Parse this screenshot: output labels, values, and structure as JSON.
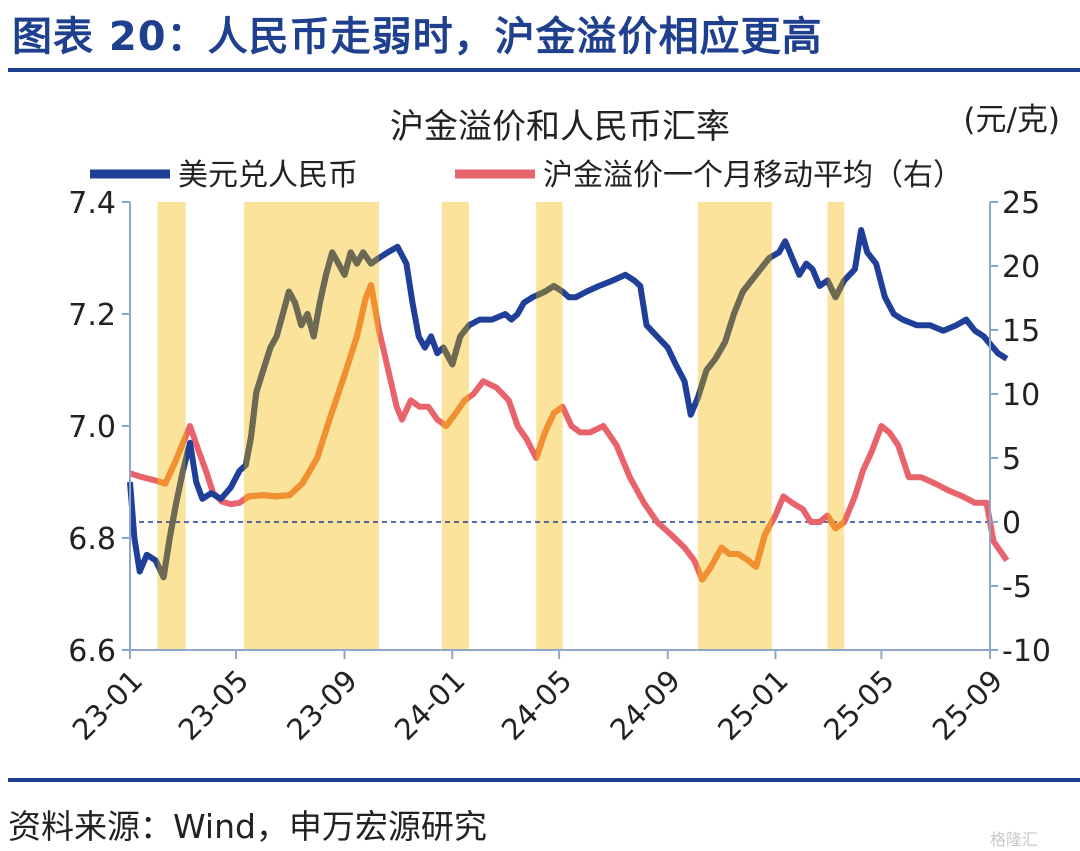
{
  "figure": {
    "title": "图表 20：人民币走弱时，沪金溢价相应更高",
    "source": "资料来源：Wind，申万宏源研究",
    "watermark": "格隆汇"
  },
  "chart_data": {
    "type": "line",
    "title": "沪金溢价和人民币汇率",
    "right_unit": "(元/克)",
    "x_tick_labels": [
      "23-01",
      "23-05",
      "23-09",
      "24-01",
      "24-05",
      "24-09",
      "25-01",
      "25-05",
      "25-09"
    ],
    "x_range": [
      "2023-01",
      "2025-09"
    ],
    "y_left": {
      "range": [
        6.6,
        7.4
      ],
      "ticks": [
        "6.6",
        "6.8",
        "7.0",
        "7.2",
        "7.4"
      ]
    },
    "y_right": {
      "range": [
        -10,
        25
      ],
      "ticks": [
        "-10",
        "-5",
        "0",
        "5",
        "10",
        "15",
        "20",
        "25"
      ]
    },
    "zero_reference_line": {
      "axis": "right",
      "value": 0
    },
    "shaded_periods": [
      [
        "2023-02-01",
        "2023-03-05"
      ],
      [
        "2023-05-10",
        "2023-10-10"
      ],
      [
        "2023-12-20",
        "2024-01-20"
      ],
      [
        "2024-04-05",
        "2024-05-05"
      ],
      [
        "2024-10-05",
        "2024-12-28"
      ],
      [
        "2025-03-01",
        "2025-03-20"
      ]
    ],
    "shade_color": "#fbe39c",
    "series": [
      {
        "name": "美元兑人民币",
        "axis": "left",
        "color": "#1f3f99",
        "points": [
          [
            "2023-01-01",
            6.9
          ],
          [
            "2023-01-06",
            6.8
          ],
          [
            "2023-01-12",
            6.74
          ],
          [
            "2023-01-20",
            6.77
          ],
          [
            "2023-01-30",
            6.76
          ],
          [
            "2023-02-08",
            6.73
          ],
          [
            "2023-02-15",
            6.8
          ],
          [
            "2023-02-22",
            6.86
          ],
          [
            "2023-03-02",
            6.92
          ],
          [
            "2023-03-10",
            6.97
          ],
          [
            "2023-03-17",
            6.9
          ],
          [
            "2023-03-24",
            6.87
          ],
          [
            "2023-04-03",
            6.88
          ],
          [
            "2023-04-14",
            6.87
          ],
          [
            "2023-04-25",
            6.89
          ],
          [
            "2023-05-05",
            6.92
          ],
          [
            "2023-05-12",
            6.93
          ],
          [
            "2023-05-18",
            6.98
          ],
          [
            "2023-05-24",
            7.06
          ],
          [
            "2023-06-01",
            7.1
          ],
          [
            "2023-06-09",
            7.14
          ],
          [
            "2023-06-16",
            7.16
          ],
          [
            "2023-06-23",
            7.2
          ],
          [
            "2023-06-30",
            7.24
          ],
          [
            "2023-07-07",
            7.22
          ],
          [
            "2023-07-14",
            7.18
          ],
          [
            "2023-07-21",
            7.2
          ],
          [
            "2023-07-28",
            7.16
          ],
          [
            "2023-08-04",
            7.22
          ],
          [
            "2023-08-11",
            7.27
          ],
          [
            "2023-08-18",
            7.31
          ],
          [
            "2023-08-25",
            7.29
          ],
          [
            "2023-09-01",
            7.27
          ],
          [
            "2023-09-08",
            7.31
          ],
          [
            "2023-09-15",
            7.29
          ],
          [
            "2023-09-22",
            7.31
          ],
          [
            "2023-10-01",
            7.29
          ],
          [
            "2023-10-10",
            7.3
          ],
          [
            "2023-10-20",
            7.31
          ],
          [
            "2023-10-31",
            7.32
          ],
          [
            "2023-11-10",
            7.29
          ],
          [
            "2023-11-17",
            7.22
          ],
          [
            "2023-11-24",
            7.16
          ],
          [
            "2023-12-01",
            7.14
          ],
          [
            "2023-12-08",
            7.16
          ],
          [
            "2023-12-15",
            7.13
          ],
          [
            "2023-12-22",
            7.14
          ],
          [
            "2024-01-01",
            7.11
          ],
          [
            "2024-01-10",
            7.16
          ],
          [
            "2024-01-20",
            7.18
          ],
          [
            "2024-02-01",
            7.19
          ],
          [
            "2024-02-15",
            7.19
          ],
          [
            "2024-03-01",
            7.2
          ],
          [
            "2024-03-08",
            7.19
          ],
          [
            "2024-03-15",
            7.2
          ],
          [
            "2024-03-22",
            7.22
          ],
          [
            "2024-04-01",
            7.23
          ],
          [
            "2024-04-15",
            7.24
          ],
          [
            "2024-04-25",
            7.25
          ],
          [
            "2024-05-05",
            7.24
          ],
          [
            "2024-05-12",
            7.23
          ],
          [
            "2024-05-20",
            7.23
          ],
          [
            "2024-06-01",
            7.24
          ],
          [
            "2024-06-15",
            7.25
          ],
          [
            "2024-07-01",
            7.26
          ],
          [
            "2024-07-15",
            7.27
          ],
          [
            "2024-07-25",
            7.26
          ],
          [
            "2024-08-01",
            7.25
          ],
          [
            "2024-08-08",
            7.18
          ],
          [
            "2024-08-20",
            7.16
          ],
          [
            "2024-09-01",
            7.14
          ],
          [
            "2024-09-10",
            7.11
          ],
          [
            "2024-09-20",
            7.08
          ],
          [
            "2024-09-27",
            7.02
          ],
          [
            "2024-10-05",
            7.05
          ],
          [
            "2024-10-15",
            7.1
          ],
          [
            "2024-10-25",
            7.12
          ],
          [
            "2024-11-05",
            7.15
          ],
          [
            "2024-11-15",
            7.2
          ],
          [
            "2024-11-25",
            7.24
          ],
          [
            "2024-12-05",
            7.26
          ],
          [
            "2024-12-15",
            7.28
          ],
          [
            "2024-12-25",
            7.3
          ],
          [
            "2025-01-05",
            7.31
          ],
          [
            "2025-01-12",
            7.33
          ],
          [
            "2025-01-20",
            7.3
          ],
          [
            "2025-01-28",
            7.27
          ],
          [
            "2025-02-05",
            7.29
          ],
          [
            "2025-02-12",
            7.28
          ],
          [
            "2025-02-20",
            7.25
          ],
          [
            "2025-03-01",
            7.26
          ],
          [
            "2025-03-10",
            7.23
          ],
          [
            "2025-03-20",
            7.26
          ],
          [
            "2025-04-01",
            7.28
          ],
          [
            "2025-04-08",
            7.35
          ],
          [
            "2025-04-15",
            7.31
          ],
          [
            "2025-04-25",
            7.29
          ],
          [
            "2025-05-05",
            7.23
          ],
          [
            "2025-05-15",
            7.2
          ],
          [
            "2025-05-25",
            7.19
          ],
          [
            "2025-06-10",
            7.18
          ],
          [
            "2025-06-25",
            7.18
          ],
          [
            "2025-07-10",
            7.17
          ],
          [
            "2025-07-25",
            7.18
          ],
          [
            "2025-08-05",
            7.19
          ],
          [
            "2025-08-15",
            7.17
          ],
          [
            "2025-08-25",
            7.16
          ],
          [
            "2025-09-10",
            7.13
          ],
          [
            "2025-09-20",
            7.12
          ]
        ]
      },
      {
        "name": "沪金溢价一个月移动平均（右）",
        "axis": "right",
        "color": "#e8636b",
        "highlight_color": "#f0902f",
        "points": [
          [
            "2023-01-01",
            3.8
          ],
          [
            "2023-01-15",
            3.5
          ],
          [
            "2023-02-01",
            3.2
          ],
          [
            "2023-02-10",
            3.0
          ],
          [
            "2023-02-20",
            4.5
          ],
          [
            "2023-03-01",
            6.0
          ],
          [
            "2023-03-10",
            7.5
          ],
          [
            "2023-03-20",
            5.5
          ],
          [
            "2023-03-28",
            4.0
          ],
          [
            "2023-04-05",
            2.3
          ],
          [
            "2023-04-15",
            1.6
          ],
          [
            "2023-04-25",
            1.4
          ],
          [
            "2023-05-05",
            1.5
          ],
          [
            "2023-05-15",
            2.0
          ],
          [
            "2023-06-01",
            2.1
          ],
          [
            "2023-06-15",
            2.0
          ],
          [
            "2023-07-01",
            2.1
          ],
          [
            "2023-07-15",
            3.0
          ],
          [
            "2023-08-01",
            5.0
          ],
          [
            "2023-08-15",
            8.0
          ],
          [
            "2023-09-01",
            11.5
          ],
          [
            "2023-09-15",
            14.5
          ],
          [
            "2023-09-25",
            17.5
          ],
          [
            "2023-10-01",
            18.5
          ],
          [
            "2023-10-10",
            15.0
          ],
          [
            "2023-10-20",
            12.0
          ],
          [
            "2023-10-30",
            9.0
          ],
          [
            "2023-11-05",
            8.0
          ],
          [
            "2023-11-15",
            9.5
          ],
          [
            "2023-11-25",
            9.0
          ],
          [
            "2023-12-05",
            9.0
          ],
          [
            "2023-12-15",
            8.0
          ],
          [
            "2023-12-25",
            7.5
          ],
          [
            "2024-01-05",
            8.5
          ],
          [
            "2024-01-15",
            9.5
          ],
          [
            "2024-01-25",
            10.0
          ],
          [
            "2024-02-05",
            11.0
          ],
          [
            "2024-02-20",
            10.5
          ],
          [
            "2024-03-05",
            9.5
          ],
          [
            "2024-03-15",
            7.5
          ],
          [
            "2024-03-25",
            6.5
          ],
          [
            "2024-04-05",
            5.0
          ],
          [
            "2024-04-15",
            7.0
          ],
          [
            "2024-04-25",
            8.5
          ],
          [
            "2024-05-05",
            9.0
          ],
          [
            "2024-05-15",
            7.5
          ],
          [
            "2024-05-25",
            7.0
          ],
          [
            "2024-06-05",
            7.0
          ],
          [
            "2024-06-20",
            7.5
          ],
          [
            "2024-07-05",
            6.0
          ],
          [
            "2024-07-20",
            3.5
          ],
          [
            "2024-08-05",
            1.5
          ],
          [
            "2024-08-20",
            0.0
          ],
          [
            "2024-09-05",
            -1.0
          ],
          [
            "2024-09-20",
            -2.0
          ],
          [
            "2024-10-01",
            -3.0
          ],
          [
            "2024-10-10",
            -4.5
          ],
          [
            "2024-10-20",
            -3.5
          ],
          [
            "2024-11-01",
            -2.0
          ],
          [
            "2024-11-10",
            -2.5
          ],
          [
            "2024-11-20",
            -2.5
          ],
          [
            "2024-12-01",
            -3.0
          ],
          [
            "2024-12-10",
            -3.5
          ],
          [
            "2024-12-20",
            -1.0
          ],
          [
            "2025-01-01",
            0.5
          ],
          [
            "2025-01-10",
            2.0
          ],
          [
            "2025-01-20",
            1.5
          ],
          [
            "2025-02-01",
            1.0
          ],
          [
            "2025-02-10",
            0.0
          ],
          [
            "2025-02-20",
            0.0
          ],
          [
            "2025-03-01",
            0.5
          ],
          [
            "2025-03-10",
            -0.5
          ],
          [
            "2025-03-20",
            0.0
          ],
          [
            "2025-04-01",
            2.0
          ],
          [
            "2025-04-10",
            4.0
          ],
          [
            "2025-04-20",
            5.5
          ],
          [
            "2025-05-01",
            7.5
          ],
          [
            "2025-05-10",
            7.0
          ],
          [
            "2025-05-20",
            6.0
          ],
          [
            "2025-06-01",
            3.5
          ],
          [
            "2025-06-15",
            3.5
          ],
          [
            "2025-07-01",
            3.0
          ],
          [
            "2025-07-15",
            2.5
          ],
          [
            "2025-08-01",
            2.0
          ],
          [
            "2025-08-15",
            1.5
          ],
          [
            "2025-08-28",
            1.5
          ],
          [
            "2025-09-05",
            -1.5
          ],
          [
            "2025-09-20",
            -3.0
          ]
        ]
      }
    ]
  }
}
